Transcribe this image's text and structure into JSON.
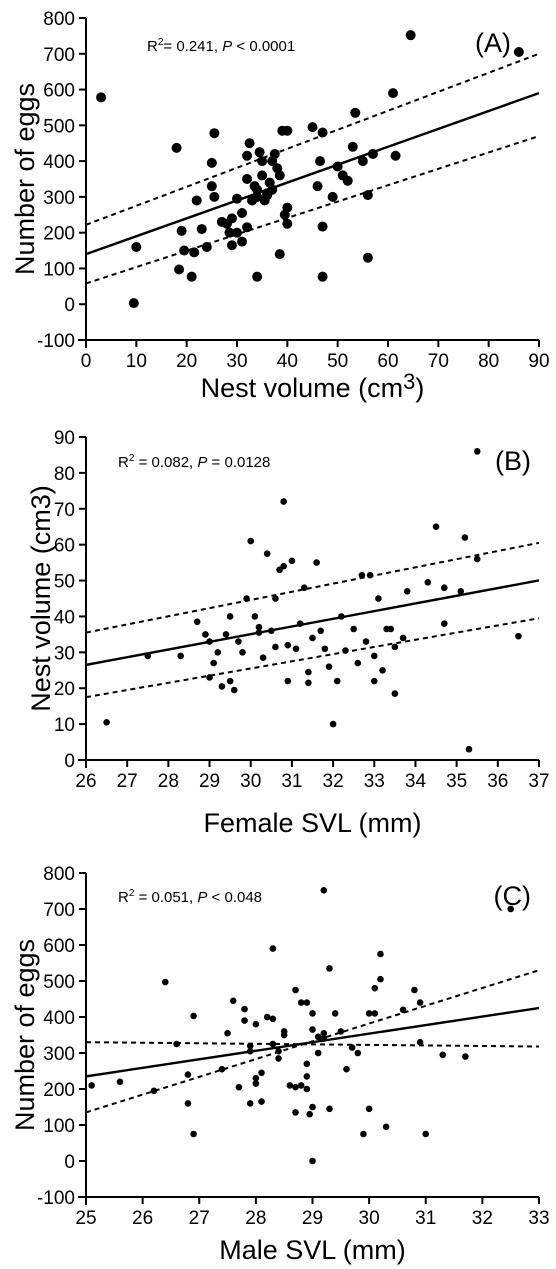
{
  "chart_data": [
    {
      "type": "scatter",
      "letter": "(A)",
      "xlabel": "Nest volume (cm3)",
      "xlabel_main": "Nest volume (cm",
      "xlabel_sup": "3",
      "xlabel_end": ")",
      "ylabel": "Number of eggs",
      "stat": {
        "r2_label": "R",
        "r2_sup": "2",
        "r2_value": "= 0.241, ",
        "p_label": "P",
        "p_value": " < 0.0001"
      },
      "xlim": [
        0,
        90
      ],
      "ylim": [
        -100,
        800
      ],
      "xticks": [
        0,
        10,
        20,
        30,
        40,
        50,
        60,
        70,
        80,
        90
      ],
      "yticks": [
        -100,
        0,
        100,
        200,
        300,
        400,
        500,
        600,
        700,
        800
      ],
      "regression": {
        "intercept": 140,
        "slope": 5.0,
        "ci_upper": [
          [
            0,
            222
          ],
          [
            90,
            700
          ]
        ],
        "ci_lower": [
          [
            0,
            58
          ],
          [
            90,
            470
          ]
        ]
      },
      "points": [
        [
          3,
          578
        ],
        [
          9.5,
          3
        ],
        [
          10,
          160
        ],
        [
          18,
          437
        ],
        [
          18.5,
          97
        ],
        [
          19,
          205
        ],
        [
          19.5,
          150
        ],
        [
          21,
          77
        ],
        [
          21.5,
          145
        ],
        [
          22,
          290
        ],
        [
          23,
          210
        ],
        [
          24,
          160
        ],
        [
          25,
          395
        ],
        [
          25.5,
          478
        ],
        [
          25,
          330
        ],
        [
          25.5,
          300
        ],
        [
          27,
          230
        ],
        [
          28,
          225
        ],
        [
          28.5,
          200
        ],
        [
          29,
          240
        ],
        [
          29,
          165
        ],
        [
          30,
          200
        ],
        [
          31,
          175
        ],
        [
          30,
          295
        ],
        [
          31,
          255
        ],
        [
          32,
          350
        ],
        [
          32,
          415
        ],
        [
          32.5,
          450
        ],
        [
          32,
          215
        ],
        [
          33,
          290
        ],
        [
          33.5,
          330
        ],
        [
          34,
          320
        ],
        [
          34,
          300
        ],
        [
          34.5,
          425
        ],
        [
          35,
          400
        ],
        [
          35,
          360
        ],
        [
          35.5,
          290
        ],
        [
          36,
          310
        ],
        [
          36.5,
          340
        ],
        [
          36,
          305
        ],
        [
          37,
          320
        ],
        [
          37.5,
          420
        ],
        [
          37,
          400
        ],
        [
          38,
          380
        ],
        [
          38.5,
          360
        ],
        [
          39,
          485
        ],
        [
          40,
          485
        ],
        [
          39.5,
          250
        ],
        [
          40,
          225
        ],
        [
          40,
          270
        ],
        [
          38.5,
          140
        ],
        [
          34,
          77
        ],
        [
          45,
          495
        ],
        [
          46,
          330
        ],
        [
          46.5,
          400
        ],
        [
          47,
          480
        ],
        [
          47,
          217
        ],
        [
          47,
          77
        ],
        [
          49,
          300
        ],
        [
          50,
          385
        ],
        [
          51,
          360
        ],
        [
          52,
          345
        ],
        [
          53,
          440
        ],
        [
          53.5,
          535
        ],
        [
          55,
          400
        ],
        [
          56,
          305
        ],
        [
          56,
          130
        ],
        [
          57,
          420
        ],
        [
          61,
          590
        ],
        [
          61.5,
          415
        ],
        [
          64.5,
          752
        ],
        [
          86,
          705
        ]
      ]
    },
    {
      "type": "scatter",
      "letter": "(B)",
      "xlabel": "Female SVL (mm)",
      "ylabel": "Nest volume (cm3)",
      "stat": {
        "r2_label": "R",
        "r2_sup": "2",
        "r2_value": " = 0.082, ",
        "p_label": "P",
        "p_value": " = 0.0128"
      },
      "xlim": [
        26,
        37
      ],
      "ylim": [
        0,
        90
      ],
      "xticks": [
        26,
        27,
        28,
        29,
        30,
        31,
        32,
        33,
        34,
        35,
        36,
        37
      ],
      "yticks": [
        0,
        10,
        20,
        30,
        40,
        50,
        60,
        70,
        80,
        90
      ],
      "regression": {
        "intercept": 26.5,
        "slope": 2.14,
        "ci_upper": [
          [
            26,
            35.5
          ],
          [
            37,
            60.5
          ]
        ],
        "ci_lower": [
          [
            26,
            17.5
          ],
          [
            37,
            39.5
          ]
        ]
      },
      "points": [
        [
          26.5,
          10.5
        ],
        [
          27.5,
          29
        ],
        [
          28.3,
          29
        ],
        [
          28.7,
          38.5
        ],
        [
          28.9,
          35
        ],
        [
          29,
          23
        ],
        [
          29,
          33
        ],
        [
          29.1,
          27
        ],
        [
          29.2,
          30
        ],
        [
          29.3,
          20.5
        ],
        [
          29.4,
          35
        ],
        [
          29.5,
          22
        ],
        [
          29.6,
          19.5
        ],
        [
          29.5,
          40
        ],
        [
          29.7,
          33
        ],
        [
          29.9,
          45
        ],
        [
          29.8,
          30
        ],
        [
          30,
          61
        ],
        [
          30.1,
          40
        ],
        [
          30.2,
          35.5
        ],
        [
          30.3,
          28.5
        ],
        [
          30.2,
          37
        ],
        [
          30.4,
          57.5
        ],
        [
          30.5,
          36
        ],
        [
          30.6,
          31.5
        ],
        [
          30.6,
          45
        ],
        [
          30.7,
          53
        ],
        [
          30.8,
          72
        ],
        [
          30.8,
          54
        ],
        [
          30.9,
          32
        ],
        [
          30.9,
          22
        ],
        [
          31,
          55.5
        ],
        [
          31.1,
          31
        ],
        [
          31.2,
          38
        ],
        [
          31.3,
          48
        ],
        [
          31.4,
          21.5
        ],
        [
          31.4,
          24.5
        ],
        [
          31.5,
          34
        ],
        [
          31.6,
          55
        ],
        [
          31.7,
          36
        ],
        [
          31.8,
          31
        ],
        [
          31.9,
          26
        ],
        [
          32,
          10
        ],
        [
          32.1,
          22
        ],
        [
          32.2,
          40
        ],
        [
          32.3,
          30.5
        ],
        [
          32.5,
          36.5
        ],
        [
          32.6,
          27
        ],
        [
          32.7,
          51.5
        ],
        [
          32.8,
          33
        ],
        [
          32.9,
          51.5
        ],
        [
          33,
          22
        ],
        [
          33,
          29
        ],
        [
          33.1,
          45
        ],
        [
          33.2,
          25
        ],
        [
          33.3,
          36.5
        ],
        [
          33.4,
          36.5
        ],
        [
          33.5,
          18.5
        ],
        [
          33.5,
          31.5
        ],
        [
          33.7,
          34
        ],
        [
          33.8,
          47
        ],
        [
          34.3,
          49.5
        ],
        [
          34.5,
          65
        ],
        [
          34.7,
          38
        ],
        [
          34.7,
          48
        ],
        [
          35.1,
          47
        ],
        [
          35.2,
          62
        ],
        [
          35.3,
          3
        ],
        [
          35.5,
          86
        ],
        [
          35.5,
          56
        ],
        [
          36.5,
          34.5
        ]
      ]
    },
    {
      "type": "scatter",
      "letter": "(C)",
      "xlabel": "Male SVL (mm)",
      "ylabel": "Number of eggs",
      "stat": {
        "r2_label": "R",
        "r2_sup": "2",
        "r2_value": " = 0.051, ",
        "p_label": "P",
        "p_value": " < 0.048"
      },
      "xlim": [
        25,
        33
      ],
      "ylim": [
        -100,
        800
      ],
      "xticks": [
        25,
        26,
        27,
        28,
        29,
        30,
        31,
        32,
        33
      ],
      "yticks": [
        -100,
        0,
        100,
        200,
        300,
        400,
        500,
        600,
        700,
        800
      ],
      "regression": {
        "intercept": 235,
        "slope": 23.75,
        "ci_upper": [
          [
            25,
            135
          ],
          [
            33,
            530
          ]
        ],
        "ci_lower": [
          [
            25,
            330
          ],
          [
            33,
            318
          ]
        ]
      },
      "points": [
        [
          25.1,
          210
        ],
        [
          25.6,
          220
        ],
        [
          26.2,
          195
        ],
        [
          26.4,
          497
        ],
        [
          26.6,
          325
        ],
        [
          26.8,
          240
        ],
        [
          26.8,
          160
        ],
        [
          26.9,
          75
        ],
        [
          26.9,
          403
        ],
        [
          27.4,
          255
        ],
        [
          27.5,
          355
        ],
        [
          27.6,
          445
        ],
        [
          27.7,
          205
        ],
        [
          27.8,
          422
        ],
        [
          27.8,
          390
        ],
        [
          27.9,
          305
        ],
        [
          27.9,
          160
        ],
        [
          27.9,
          320
        ],
        [
          28,
          230
        ],
        [
          28,
          215
        ],
        [
          28,
          380
        ],
        [
          28.1,
          245
        ],
        [
          28.1,
          165
        ],
        [
          28.2,
          400
        ],
        [
          28.3,
          590
        ],
        [
          28.3,
          395
        ],
        [
          28.3,
          325
        ],
        [
          28.4,
          305
        ],
        [
          28.4,
          285
        ],
        [
          28.5,
          360
        ],
        [
          28.5,
          350
        ],
        [
          28.6,
          210
        ],
        [
          28.7,
          205
        ],
        [
          28.7,
          475
        ],
        [
          28.7,
          135
        ],
        [
          28.8,
          440
        ],
        [
          28.8,
          210
        ],
        [
          28.9,
          440
        ],
        [
          28.9,
          270
        ],
        [
          28.9,
          235
        ],
        [
          28.9,
          200
        ],
        [
          29,
          410
        ],
        [
          29,
          365
        ],
        [
          29.1,
          345
        ],
        [
          29.1,
          300
        ],
        [
          29.2,
          355
        ],
        [
          29.2,
          340
        ],
        [
          29,
          150
        ],
        [
          28.95,
          130
        ],
        [
          29,
          0
        ],
        [
          29.2,
          752
        ],
        [
          29.3,
          535
        ],
        [
          29.3,
          145
        ],
        [
          29.4,
          410
        ],
        [
          29.5,
          360
        ],
        [
          29.6,
          255
        ],
        [
          29.7,
          315
        ],
        [
          29.8,
          300
        ],
        [
          29.9,
          75
        ],
        [
          30,
          410
        ],
        [
          30,
          145
        ],
        [
          30.1,
          480
        ],
        [
          30.1,
          410
        ],
        [
          30.2,
          575
        ],
        [
          30.2,
          505
        ],
        [
          30.3,
          95
        ],
        [
          30.6,
          420
        ],
        [
          30.8,
          475
        ],
        [
          30.9,
          440
        ],
        [
          30.9,
          330
        ],
        [
          31,
          75
        ],
        [
          31.3,
          295
        ],
        [
          31.7,
          290
        ],
        [
          32.5,
          700
        ]
      ]
    }
  ]
}
